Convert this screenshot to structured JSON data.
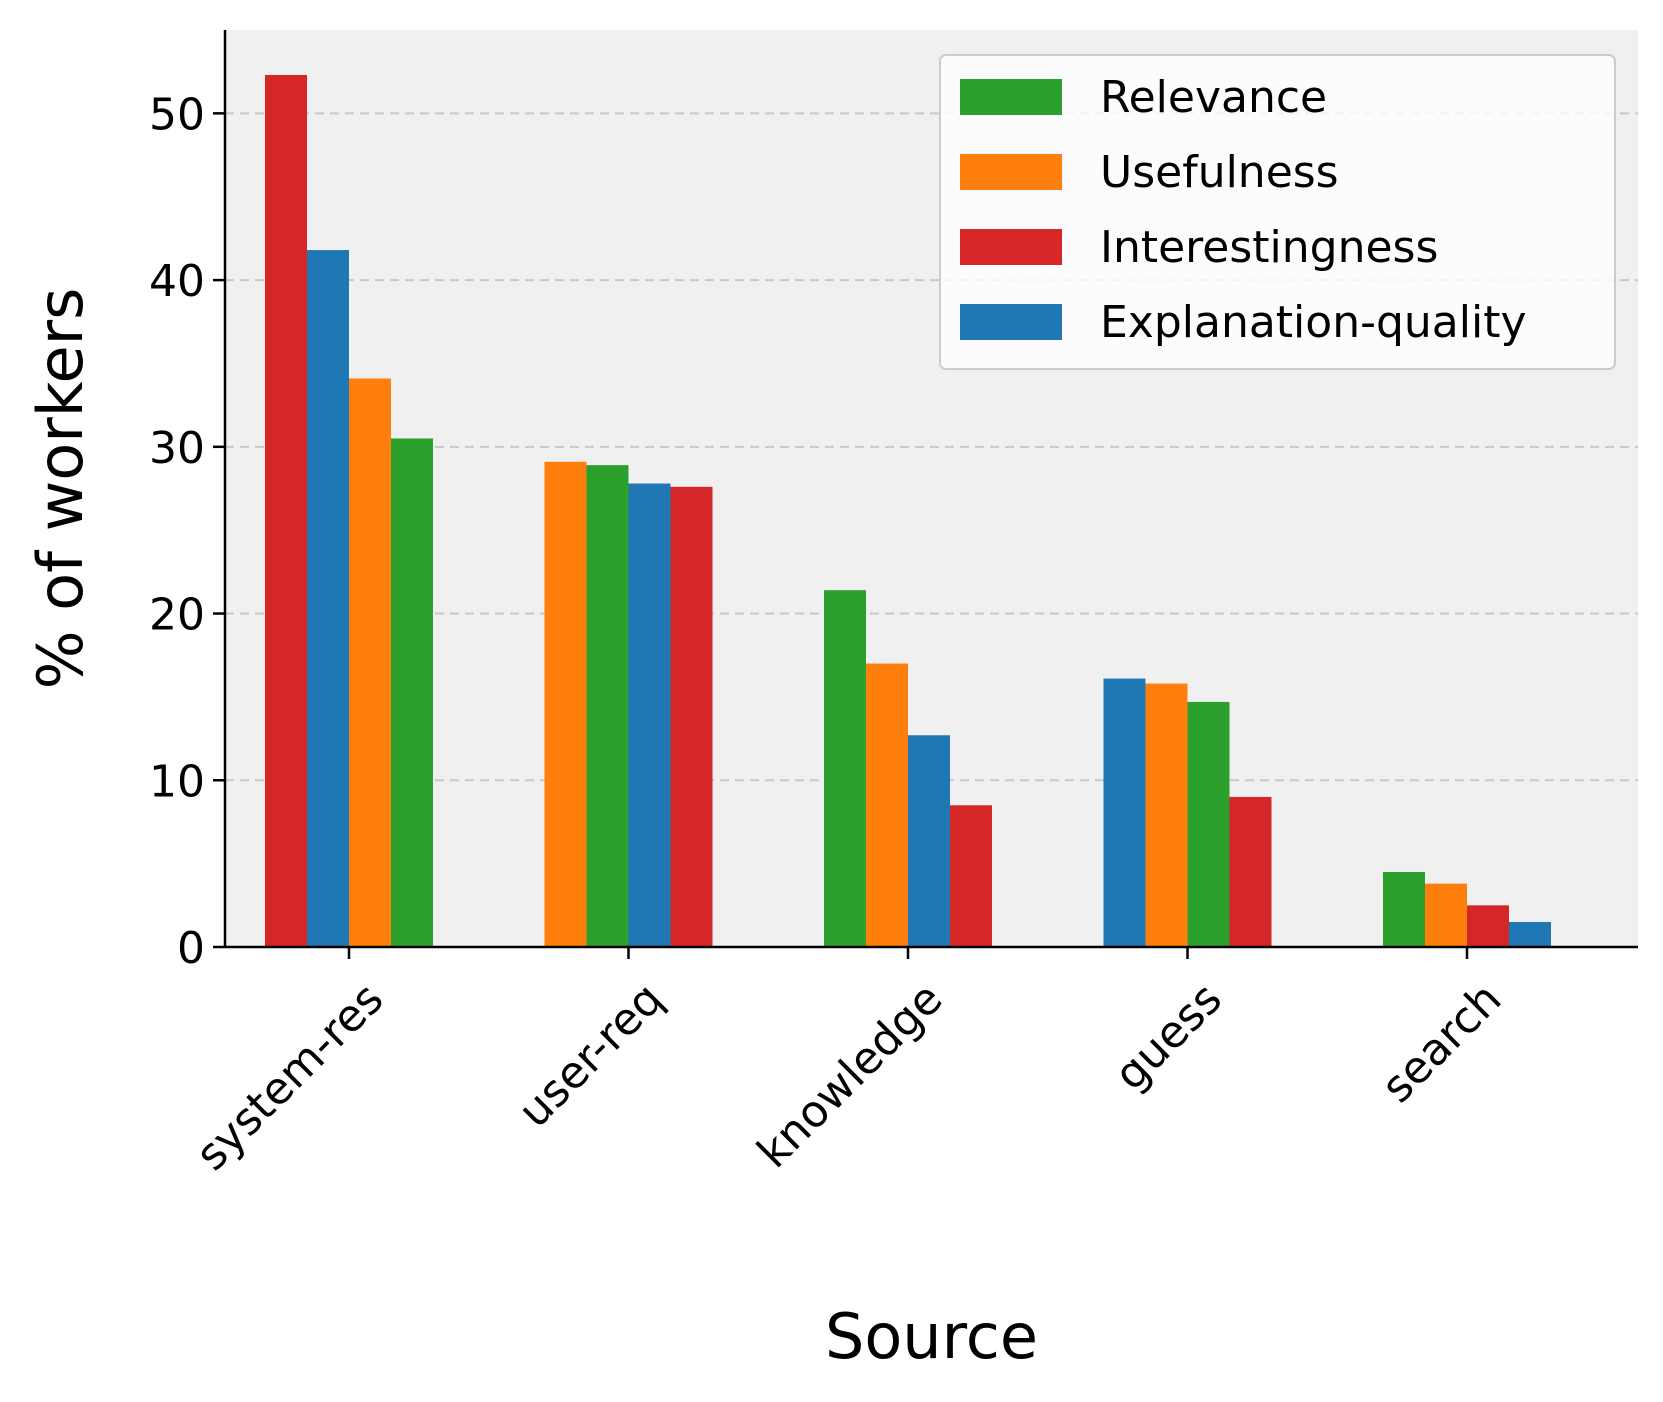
{
  "chart_data": {
    "type": "bar",
    "title": "",
    "xlabel": "Source",
    "ylabel": "% of workers",
    "ylim": [
      0,
      55
    ],
    "yticks": [
      0,
      10,
      20,
      30,
      40,
      50
    ],
    "grid": "y-dashed",
    "legend_position": "top-right",
    "categories": [
      "system-res",
      "user-req",
      "knowledge",
      "guess",
      "search"
    ],
    "series": [
      {
        "name": "Relevance",
        "color": "#2ca02c",
        "values": [
          30.5,
          28.9,
          21.4,
          14.7,
          4.5
        ]
      },
      {
        "name": "Usefulness",
        "color": "#ff7f0e",
        "values": [
          34.1,
          29.1,
          17.0,
          15.8,
          3.8
        ]
      },
      {
        "name": "Interestingness",
        "color": "#d62728",
        "values": [
          52.3,
          27.6,
          8.5,
          9.0,
          2.5
        ]
      },
      {
        "name": "Explanation-quality",
        "color": "#1f77b4",
        "values": [
          41.8,
          27.8,
          12.7,
          16.1,
          1.5
        ]
      }
    ],
    "bar_order_by_category": [
      [
        "Interestingness",
        "Explanation-quality",
        "Usefulness",
        "Relevance"
      ],
      [
        "Usefulness",
        "Relevance",
        "Explanation-quality",
        "Interestingness"
      ],
      [
        "Relevance",
        "Usefulness",
        "Explanation-quality",
        "Interestingness"
      ],
      [
        "Explanation-quality",
        "Usefulness",
        "Relevance",
        "Interestingness"
      ],
      [
        "Relevance",
        "Usefulness",
        "Interestingness",
        "Explanation-quality"
      ]
    ]
  },
  "colors": {
    "plot_background": "#f0f0f0",
    "grid": "#c8c8c8",
    "axis": "#000000"
  }
}
